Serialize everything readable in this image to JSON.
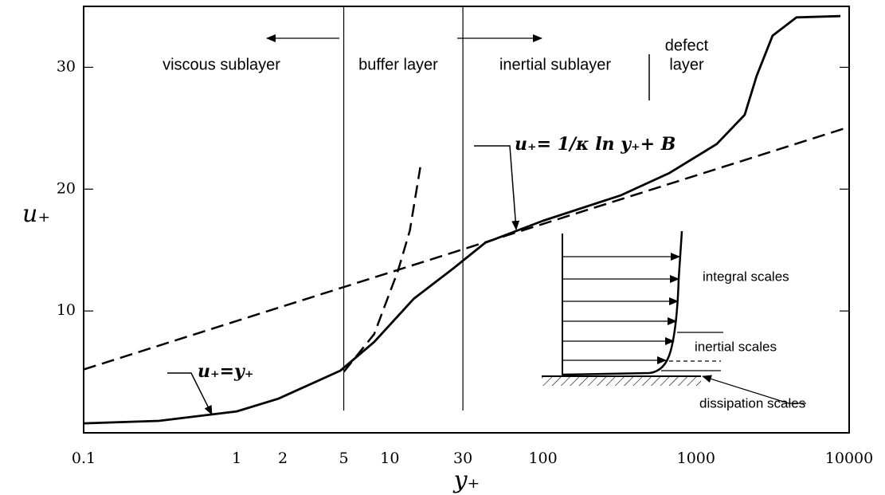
{
  "chart_data": {
    "type": "line",
    "x_label": "y₊",
    "y_label": "u₊",
    "xscale": "log",
    "xlim": [
      0.1,
      10000
    ],
    "xticks": [
      0.1,
      1,
      2,
      5,
      10,
      30,
      100,
      1000,
      10000
    ],
    "ylim": [
      0,
      35
    ],
    "yticks": [
      10,
      20,
      30
    ],
    "boundaries": [
      5,
      30
    ],
    "region_labels": [
      "viscous sublayer",
      "buffer layer",
      "inertial sublayer",
      "defect",
      "layer"
    ],
    "annotations": [
      "u₊=y₊",
      "u₊= 1/κ ln y₊+ B"
    ],
    "inset_labels": [
      "integral scales",
      "inertial scales",
      "dissipation scales"
    ],
    "series": [
      {
        "color": "#000000",
        "dash": false,
        "x": [
          0.1,
          0.31,
          1,
          1.87,
          4.75,
          7.9,
          14.3,
          26,
          42,
          100,
          324,
          665,
          1365,
          2080,
          2490,
          3162,
          4530,
          8770
        ],
        "values": [
          0.78,
          0.98,
          1.76,
          2.8,
          5.1,
          7.45,
          11.0,
          13.5,
          15.6,
          17.4,
          19.5,
          21.3,
          23.7,
          26.1,
          29.3,
          32.6,
          34.1,
          34.2
        ]
      },
      {
        "color": "#000000",
        "dash": true,
        "x": [
          0.1,
          10000
        ],
        "values": [
          5.2,
          25.1
        ]
      },
      {
        "color": "#000000",
        "dash": true,
        "x": [
          5,
          7.9,
          11.3,
          13.5,
          15.8
        ],
        "values": [
          5,
          8.1,
          13.3,
          16.6,
          21.8
        ]
      }
    ]
  }
}
